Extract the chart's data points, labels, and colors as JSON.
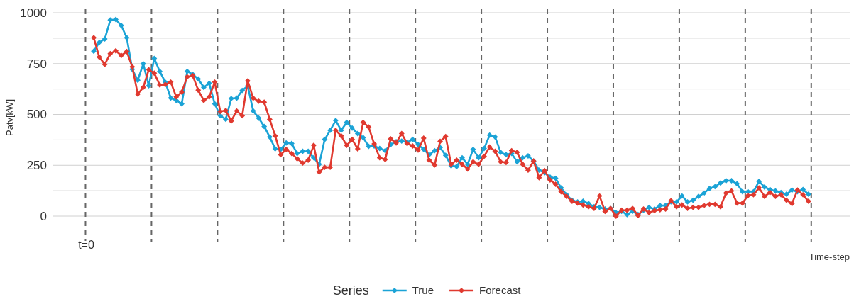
{
  "chart_data": {
    "type": "line",
    "xlabel": "Time-step",
    "ylabel": "Patv[kW]",
    "legend_title": "Series",
    "categories": [
      null,
      null,
      null,
      null,
      null,
      null,
      null,
      null,
      null,
      null,
      null,
      null,
      null,
      null,
      null,
      null,
      null,
      null,
      null,
      null,
      null,
      null,
      null,
      null,
      null,
      null,
      null,
      null,
      null,
      null,
      null,
      null,
      null,
      null,
      null,
      null,
      null,
      null,
      null,
      null,
      null,
      null,
      null,
      null,
      null,
      null,
      null,
      null,
      null,
      null,
      null,
      null,
      null,
      null,
      null,
      null,
      null,
      null,
      null,
      null,
      null,
      null,
      null,
      null,
      null,
      null,
      null,
      null,
      null,
      null,
      null,
      null,
      null,
      null,
      null,
      null,
      null,
      null,
      null,
      null,
      null,
      null,
      null,
      null,
      null,
      null,
      null,
      null,
      null,
      null,
      null,
      null,
      null,
      null,
      null,
      null,
      null,
      null,
      null,
      null,
      null,
      null,
      null,
      null,
      null,
      null,
      null,
      null,
      null,
      null,
      null,
      null,
      null,
      null,
      null,
      null,
      null,
      null,
      null,
      null,
      null,
      null,
      null,
      null,
      null,
      null,
      null,
      null,
      null,
      null,
      null
    ],
    "series": [
      {
        "name": "True",
        "color": "#1ba3d6",
        "values": [
          811,
          854,
          871,
          964,
          967,
          937,
          877,
          722,
          668,
          749,
          641,
          775,
          712,
          659,
          581,
          569,
          552,
          712,
          697,
          674,
          633,
          653,
          552,
          494,
          476,
          578,
          580,
          618,
          640,
          517,
          482,
          441,
          389,
          331,
          328,
          360,
          357,
          308,
          319,
          319,
          287,
          255,
          377,
          422,
          470,
          422,
          461,
          433,
          406,
          386,
          343,
          345,
          333,
          322,
          352,
          366,
          369,
          363,
          377,
          352,
          328,
          302,
          322,
          337,
          299,
          247,
          244,
          287,
          255,
          328,
          287,
          333,
          398,
          389,
          314,
          302,
          308,
          267,
          287,
          296,
          271,
          226,
          213,
          192,
          186,
          139,
          105,
          78,
          70,
          73,
          62,
          46,
          43,
          35,
          38,
          17,
          23,
          8,
          23,
          8,
          29,
          43,
          35,
          52,
          52,
          70,
          70,
          99,
          70,
          78,
          97,
          113,
          136,
          145,
          163,
          174,
          174,
          159,
          120,
          120,
          120,
          171,
          143,
          131,
          124,
          116,
          108,
          128,
          120,
          131,
          108
        ]
      },
      {
        "name": "Forecast",
        "color": "#e0392f",
        "values": [
          877,
          782,
          746,
          799,
          813,
          790,
          809,
          734,
          600,
          633,
          720,
          703,
          645,
          647,
          659,
          586,
          610,
          685,
          691,
          619,
          569,
          586,
          659,
          515,
          519,
          468,
          517,
          494,
          665,
          580,
          565,
          560,
          476,
          395,
          302,
          328,
          308,
          282,
          261,
          275,
          348,
          217,
          240,
          240,
          422,
          395,
          348,
          377,
          331,
          461,
          438,
          355,
          287,
          279,
          380,
          360,
          406,
          357,
          345,
          325,
          383,
          275,
          252,
          368,
          391,
          255,
          275,
          255,
          232,
          267,
          255,
          294,
          340,
          319,
          267,
          264,
          322,
          314,
          255,
          226,
          271,
          189,
          224,
          178,
          157,
          120,
          97,
          73,
          64,
          55,
          46,
          38,
          99,
          23,
          38,
          0,
          29,
          29,
          38,
          3,
          35,
          17,
          27,
          31,
          35,
          76,
          46,
          55,
          38,
          43,
          43,
          52,
          58,
          58,
          46,
          113,
          124,
          64,
          64,
          101,
          105,
          139,
          97,
          116,
          97,
          105,
          78,
          62,
          128,
          105,
          73
        ]
      }
    ],
    "annotations": [
      "t=0"
    ],
    "ylim": [
      0,
      1000
    ],
    "yticks": [
      0,
      {
        "value": 125,
        "label": null
      },
      250,
      {
        "value": 375,
        "label": null
      },
      500,
      {
        "value": 625,
        "label": null
      },
      750,
      {
        "value": 875,
        "label": null
      },
      1000
    ],
    "grid": "y",
    "legend": "bottom",
    "marker": "diamond",
    "line_style": "solid"
  }
}
